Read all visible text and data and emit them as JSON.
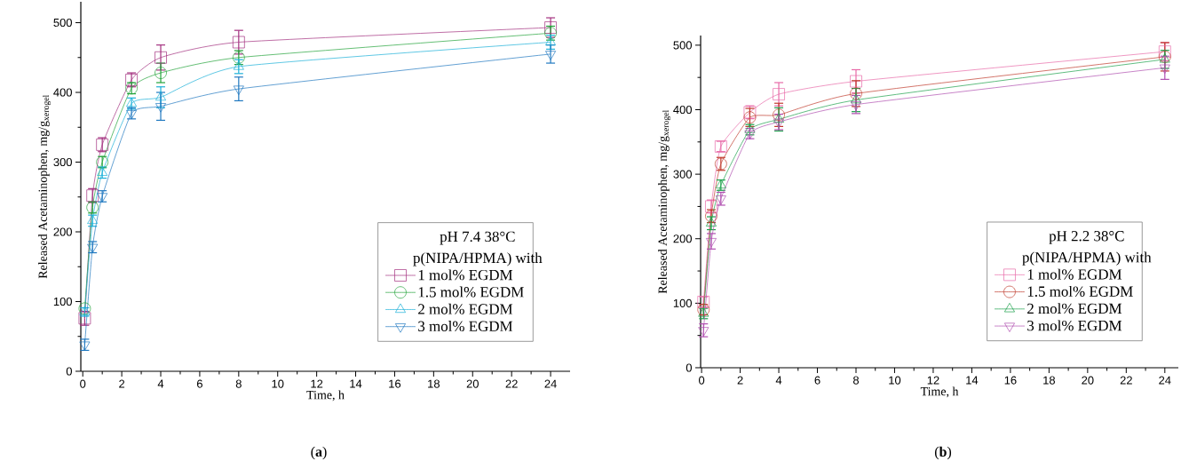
{
  "chart_data": [
    {
      "type": "line",
      "xlabel": "Time, h",
      "ylabel": "Released Acetaminophen, mg/g$_{xerogel}$",
      "legend_title": "pH 7.4  38°C p(NIPA/HPMA) with",
      "legend": "bottom right",
      "annotations": [
        "(**a**)"
      ],
      "xlim": [
        -0.1,
        25
      ],
      "ylim": [
        0,
        530
      ],
      "xticks": [
        0,
        {
          "value": 1,
          "label": null
        },
        2,
        {
          "value": 3,
          "label": null
        },
        4,
        {
          "value": 5,
          "label": null
        },
        6,
        {
          "value": 7,
          "label": null
        },
        8,
        {
          "value": 9,
          "label": null
        },
        10,
        {
          "value": 11,
          "label": null
        },
        12,
        {
          "value": 13,
          "label": null
        },
        14,
        {
          "value": 15,
          "label": null
        },
        16,
        {
          "value": 17,
          "label": null
        },
        18,
        {
          "value": 19,
          "label": null
        },
        20,
        {
          "value": 21,
          "label": null
        },
        22,
        {
          "value": 23,
          "label": null
        },
        24
      ],
      "yticks": [
        0,
        {
          "value": 50,
          "label": null
        },
        100,
        {
          "value": 150,
          "label": null
        },
        200,
        {
          "value": 250,
          "label": null
        },
        300,
        {
          "value": 350,
          "label": null
        },
        400,
        {
          "value": 450,
          "label": null
        },
        500
      ],
      "x": [
        0.1,
        0.5,
        1,
        2.5,
        4,
        8,
        24
      ],
      "series": [
        {
          "name": "1 mol%  EGDM",
          "color": "#a3307f",
          "marker": "square",
          "values": [
            76,
            252,
            325,
            418,
            450,
            472,
            493
          ],
          "errors": [
            10,
            10,
            10,
            10,
            18,
            17,
            14
          ]
        },
        {
          "name": "1.5 mol% EGDM",
          "color": "#22a33a",
          "marker": "circle",
          "values": [
            90,
            235,
            300,
            406,
            428,
            450,
            485
          ],
          "errors": [
            null,
            8,
            8,
            8,
            14,
            10,
            10
          ]
        },
        {
          "name": "2 mol%  EGDM",
          "color": "#1ab0d8",
          "marker": "triangle",
          "values": [
            85,
            216,
            285,
            384,
            393,
            437,
            472
          ],
          "errors": [
            6,
            8,
            8,
            8,
            15,
            10,
            10
          ]
        },
        {
          "name": "3 mol%  EGDM",
          "color": "#1f78c0",
          "marker": "triangle-down",
          "values": [
            38,
            178,
            251,
            370,
            380,
            405,
            455
          ],
          "errors": [
            8,
            8,
            8,
            8,
            20,
            17,
            13
          ]
        }
      ]
    },
    {
      "type": "line",
      "xlabel": "Time, h",
      "ylabel": "Released Acetaminophen, mg/g$_{xerogel}$",
      "legend_title": "pH 2.2   38°C p(NIPA/HPMA) with",
      "legend": "bottom right",
      "annotations": [
        "(**b**)"
      ],
      "xlim": [
        -0.05,
        24.7
      ],
      "ylim": [
        0,
        515
      ],
      "xticks": [
        0,
        {
          "value": 1,
          "label": null
        },
        2,
        {
          "value": 3,
          "label": null
        },
        4,
        {
          "value": 5,
          "label": null
        },
        6,
        {
          "value": 7,
          "label": null
        },
        8,
        {
          "value": 9,
          "label": null
        },
        10,
        {
          "value": 11,
          "label": null
        },
        12,
        {
          "value": 13,
          "label": null
        },
        14,
        {
          "value": 15,
          "label": null
        },
        16,
        {
          "value": 17,
          "label": null
        },
        18,
        {
          "value": 19,
          "label": null
        },
        20,
        {
          "value": 21,
          "label": null
        },
        22,
        {
          "value": 23,
          "label": null
        },
        24
      ],
      "yticks": [
        0,
        {
          "value": 50,
          "label": null
        },
        100,
        {
          "value": 150,
          "label": null
        },
        200,
        {
          "value": 250,
          "label": null
        },
        300,
        {
          "value": 350,
          "label": null
        },
        400,
        {
          "value": 450,
          "label": null
        },
        500
      ],
      "x": [
        0.1,
        0.5,
        1,
        2.5,
        4,
        8,
        24
      ],
      "series": [
        {
          "name": "1 mol%  EGDM",
          "color": "#e86aa8",
          "marker": "square",
          "values": [
            102,
            250,
            343,
            396,
            424,
            444,
            490
          ],
          "errors": [
            8,
            10,
            8,
            10,
            18,
            18,
            14
          ]
        },
        {
          "name": "1.5 mol% EGDM",
          "color": "#c0392b",
          "marker": "circle",
          "values": [
            90,
            235,
            316,
            388,
            392,
            425,
            482
          ],
          "errors": [
            8,
            10,
            10,
            14,
            18,
            20,
            22
          ]
        },
        {
          "name": "2 mol%  EGDM",
          "color": "#1aa04a",
          "marker": "triangle",
          "values": [
            84,
            224,
            283,
            369,
            385,
            415,
            478
          ],
          "errors": [
            8,
            10,
            8,
            8,
            18,
            18,
            14
          ]
        },
        {
          "name": "3 mol%  EGDM",
          "color": "#b04fb0",
          "marker": "triangle-down",
          "values": [
            58,
            196,
            262,
            363,
            381,
            408,
            465
          ],
          "errors": [
            10,
            12,
            10,
            8,
            12,
            14,
            18
          ]
        }
      ]
    }
  ]
}
